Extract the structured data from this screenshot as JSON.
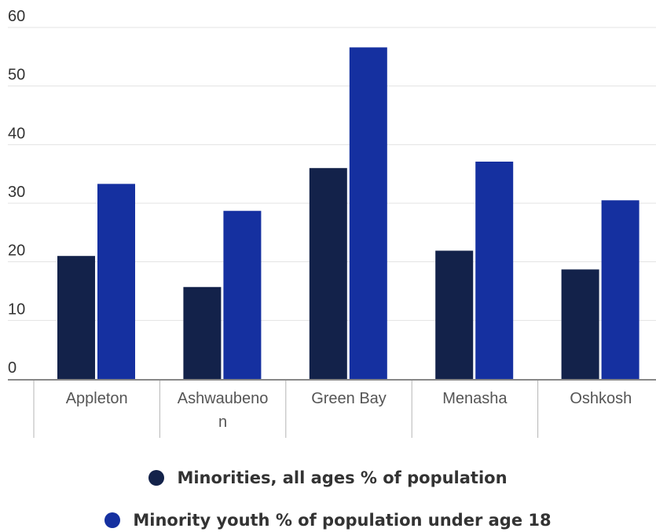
{
  "chart_data": {
    "type": "bar",
    "categories": [
      "Appleton",
      "Ashwaubenon",
      "Green Bay",
      "Menasha",
      "Oshkosh"
    ],
    "category_label_lines": [
      [
        "Appleton"
      ],
      [
        "Ashwaubeno",
        "n"
      ],
      [
        "Green Bay"
      ],
      [
        "Menasha"
      ],
      [
        "Oshkosh"
      ]
    ],
    "series": [
      {
        "name": "Minorities, all ages % of population",
        "color": "#13224a",
        "values": [
          21,
          15.7,
          36,
          21.9,
          18.7
        ]
      },
      {
        "name": "Minority youth % of population under age 18",
        "color": "#1530a0",
        "values": [
          33.3,
          28.7,
          56.6,
          37.1,
          30.5
        ]
      }
    ],
    "y_ticks": [
      "0",
      "10",
      "20",
      "30",
      "40",
      "50",
      "60"
    ],
    "ylim": [
      0,
      60
    ],
    "grid": true,
    "legend_position": "bottom"
  }
}
